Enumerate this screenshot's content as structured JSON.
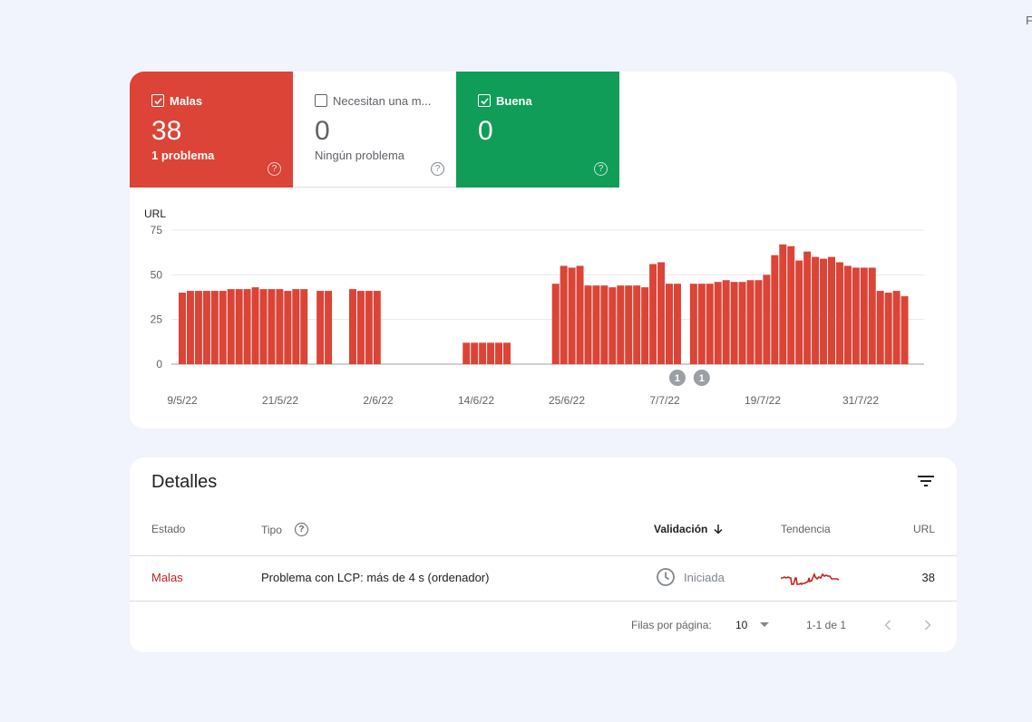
{
  "corner_text": "F",
  "tiles": {
    "bad": {
      "label": "Malas",
      "count": "38",
      "sub": "1 problema",
      "checked": true,
      "color": "#db4437"
    },
    "needs": {
      "label": "Necesitan una m...",
      "count": "0",
      "sub": "Ningún problema",
      "checked": false
    },
    "good": {
      "label": "Buena",
      "count": "0",
      "sub": "",
      "checked": true,
      "color": "#0f9d58"
    }
  },
  "chart_data": {
    "type": "bar",
    "ylabel": "URL",
    "ylim": [
      0,
      75
    ],
    "yticks": [
      "0",
      "25",
      "50",
      "75"
    ],
    "bar_color": "#db4437",
    "x_tick_labels": [
      "9/5/22",
      "21/5/22",
      "2/6/22",
      "14/6/22",
      "25/6/22",
      "7/7/22",
      "19/7/22",
      "31/7/22"
    ],
    "values": [
      40,
      41,
      41,
      41,
      41,
      41,
      42,
      42,
      42,
      43,
      42,
      42,
      42,
      41,
      42,
      42,
      0,
      41,
      41,
      0,
      0,
      42,
      41,
      41,
      41,
      0,
      0,
      0,
      0,
      0,
      0,
      0,
      0,
      0,
      0,
      12,
      12,
      12,
      12,
      12,
      12,
      0,
      0,
      0,
      0,
      0,
      45,
      55,
      54,
      55,
      44,
      44,
      44,
      43,
      44,
      44,
      44,
      43,
      56,
      57,
      45,
      45,
      0,
      45,
      45,
      45,
      46,
      47,
      46,
      46,
      47,
      47,
      50,
      61,
      67,
      66,
      58,
      63,
      60,
      59,
      60,
      57,
      55,
      54,
      54,
      54,
      41,
      40,
      41,
      38
    ],
    "annotations": [
      {
        "label": "1"
      },
      {
        "label": "1"
      }
    ]
  },
  "details": {
    "title": "Detalles",
    "columns": {
      "status": "Estado",
      "type": "Tipo",
      "validation": "Validación",
      "trend": "Tendencia",
      "url": "URL"
    },
    "rows": [
      {
        "status": "Malas",
        "type": "Problema con LCP: más de 4 s (ordenador)",
        "validation": "Iniciada",
        "url": "38"
      }
    ],
    "footer": {
      "rows_per_page_label": "Filas por página:",
      "rows_per_page": "10",
      "range": "1-1 de 1"
    }
  }
}
